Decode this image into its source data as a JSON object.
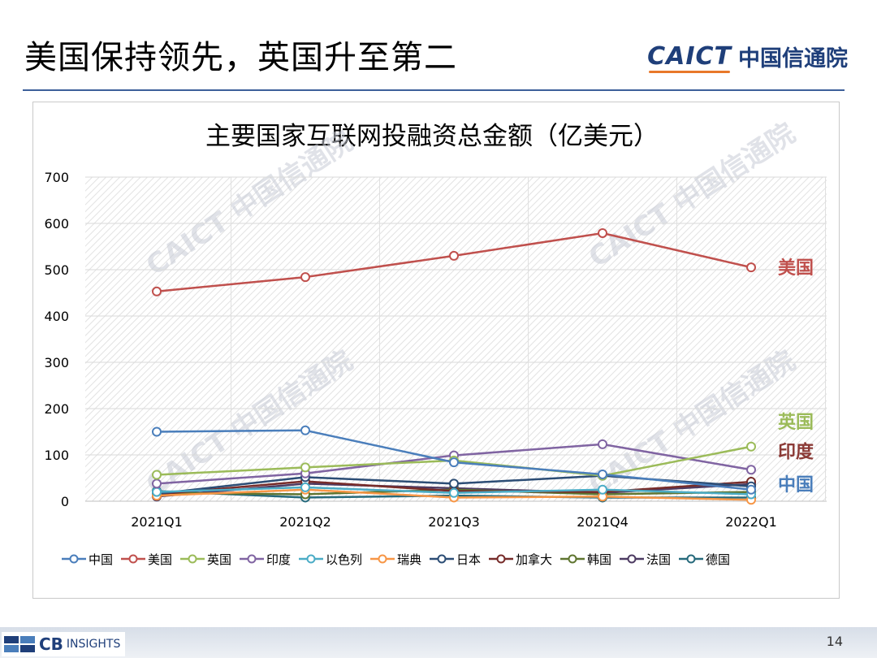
{
  "slide": {
    "title": "美国保持领先，英国升至第二",
    "brand_en": "CAICT",
    "brand_cn": "中国信通院",
    "footer_logo_cb": "CB",
    "footer_logo_insights": "INSIGHTS",
    "page_number": "14",
    "watermark": "CAICT 中国信通院"
  },
  "chart_data": {
    "type": "line",
    "title": "主要国家互联网投融资总金额（亿美元）",
    "categories": [
      "2021Q1",
      "2021Q2",
      "2021Q3",
      "2021Q4",
      "2022Q1"
    ],
    "ylim": [
      0,
      700
    ],
    "yticks": [
      0,
      100,
      200,
      300,
      400,
      500,
      600,
      700
    ],
    "grid": true,
    "legend_position": "bottom",
    "series": [
      {
        "name": "中国",
        "color": "#4a7ebb",
        "values": [
          150,
          153,
          84,
          58,
          25
        ]
      },
      {
        "name": "美国",
        "color": "#c0504d",
        "values": [
          453,
          484,
          530,
          579,
          505
        ]
      },
      {
        "name": "英国",
        "color": "#9bbb59",
        "values": [
          57,
          73,
          88,
          55,
          118
        ]
      },
      {
        "name": "印度",
        "color": "#8064a2",
        "values": [
          38,
          60,
          99,
          123,
          68
        ]
      },
      {
        "name": "以色列",
        "color": "#4bacc6",
        "values": [
          20,
          30,
          18,
          25,
          15
        ]
      },
      {
        "name": "瑞典",
        "color": "#f79646",
        "values": [
          12,
          25,
          8,
          10,
          3
        ]
      },
      {
        "name": "日本",
        "color": "#2c4d75",
        "values": [
          16,
          52,
          38,
          55,
          32
        ]
      },
      {
        "name": "加拿大",
        "color": "#772c2a",
        "values": [
          15,
          43,
          22,
          20,
          42
        ]
      },
      {
        "name": "韩国",
        "color": "#5f7530",
        "values": [
          18,
          15,
          25,
          15,
          20
        ]
      },
      {
        "name": "法国",
        "color": "#4d3b62",
        "values": [
          10,
          38,
          28,
          18,
          37
        ]
      },
      {
        "name": "德国",
        "color": "#276a7c",
        "values": [
          22,
          8,
          12,
          8,
          8
        ]
      }
    ],
    "annotations": [
      {
        "text": "美国",
        "color": "#c0504d",
        "value": 505
      },
      {
        "text": "英国",
        "color": "#9bbb59",
        "value": 172
      },
      {
        "text": "印度",
        "color": "#8b3a36",
        "value": 108
      },
      {
        "text": "中国",
        "color": "#4a7ebb",
        "value": 37
      }
    ]
  }
}
